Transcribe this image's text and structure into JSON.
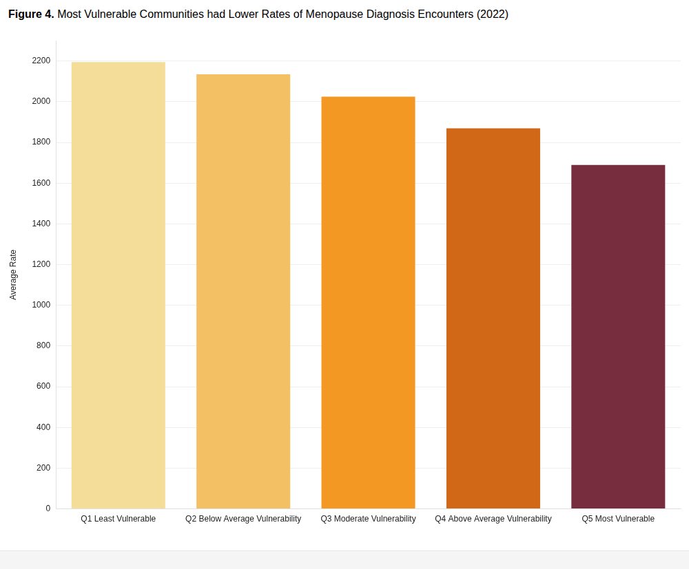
{
  "chart_data": {
    "type": "bar",
    "title": "Figure 4. Most Vulnerable Communities had Lower Rates of Menopause Diagnosis Encounters (2022)",
    "ylabel": "Average Rate",
    "categories": [
      "Q1 Least Vulnerable",
      "Q2 Below Average Vulnerability",
      "Q3 Moderate Vulnerability",
      "Q4 Above Average Vulnerability",
      "Q5 Most Vulnerable"
    ],
    "values": [
      2195,
      2135,
      2025,
      1870,
      1690
    ],
    "colors": [
      "#f3dd98",
      "#f3c063",
      "#f39823",
      "#d06817",
      "#772d3d"
    ],
    "ylim": [
      0,
      2300
    ],
    "yticks": [
      0,
      200,
      400,
      600,
      800,
      1000,
      1200,
      1400,
      1600,
      1800,
      2000,
      2200
    ],
    "grid": true
  }
}
